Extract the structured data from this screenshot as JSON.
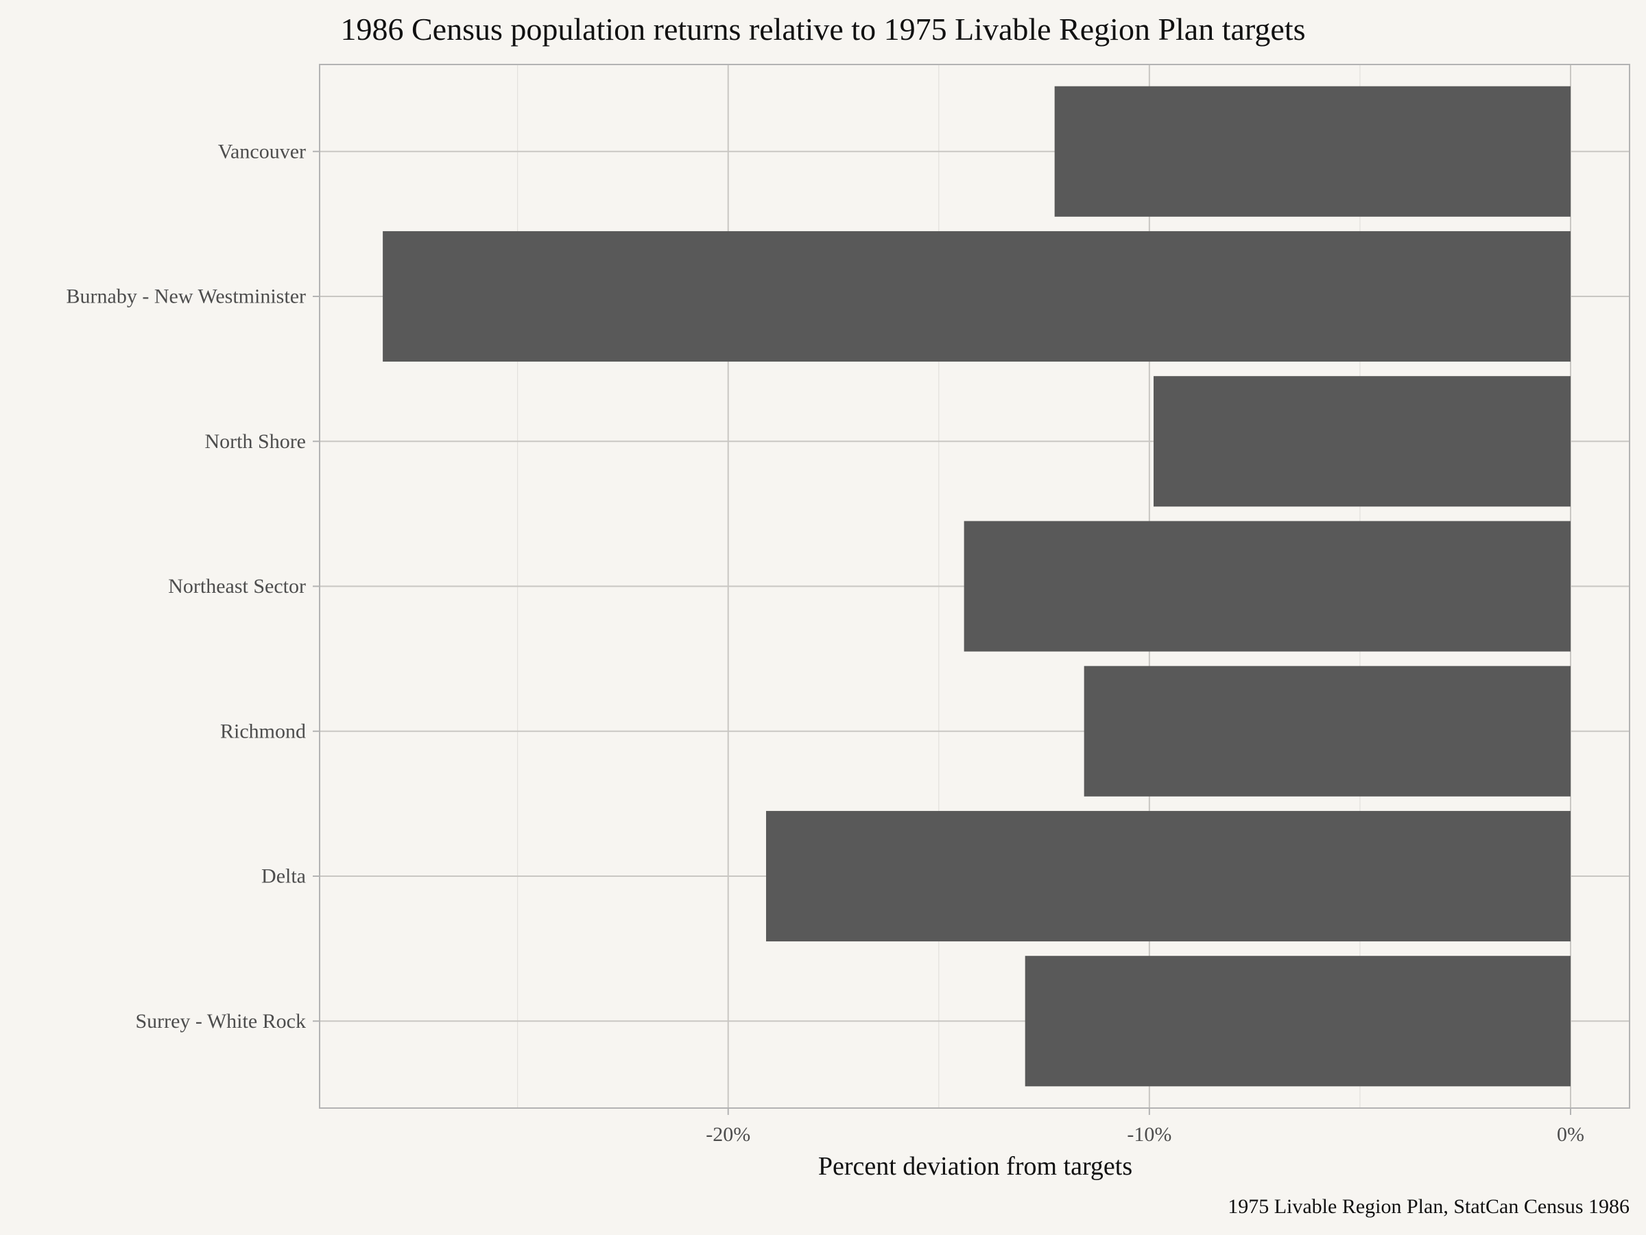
{
  "chart_data": {
    "type": "bar",
    "orientation": "horizontal",
    "title": "1986 Census population returns relative to 1975 Livable Region Plan targets",
    "xlabel": "Percent deviation from targets",
    "ylabel": "",
    "caption": "1975 Livable Region Plan, StatCan Census 1986",
    "categories": [
      "Vancouver",
      "Burnaby - New Westminister",
      "North Shore",
      "Northeast Sector",
      "Richmond",
      "Delta",
      "Surrey - White Rock"
    ],
    "values": [
      -12.25,
      -28.2,
      -9.9,
      -14.4,
      -11.55,
      -19.1,
      -12.95
    ],
    "xlim": [
      -29.7,
      1.4
    ],
    "xticks": [
      -20,
      -10,
      0
    ],
    "xtick_labels": [
      "-20%",
      "-10%",
      "0%"
    ],
    "grid": true,
    "bar_color": "#595959",
    "panel_border_color": "#b3b3b3",
    "grid_color": "#c9c7c3",
    "background": "#f7f5f1"
  }
}
